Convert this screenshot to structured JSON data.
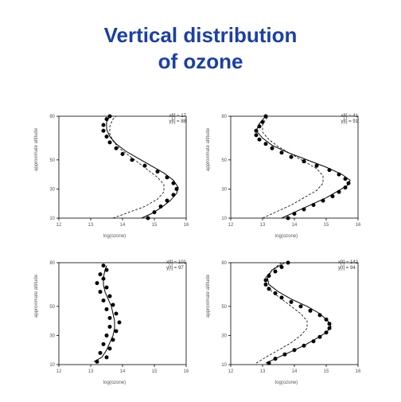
{
  "title_line1": "Vertical distribution",
  "title_line2": "of ozone",
  "title_color": "#1a3fa8",
  "title_fontsize": 26,
  "background_color": "#ffffff",
  "panels": [
    {
      "type": "scatter-line",
      "xlabel": "log(ozone)",
      "ylabel": "approximate altitude",
      "annot_line1": "x[t] = 17",
      "annot_line2": "y[t] = 88",
      "xlim": [
        12,
        16
      ],
      "ylim": [
        10,
        80
      ],
      "xticks": [
        12,
        13,
        14,
        15,
        16
      ],
      "yticks": [
        10,
        30,
        50,
        80
      ],
      "point_color": "#000000",
      "line_color": "#000000",
      "marker_size": 2.5,
      "line_width": 1,
      "points": [
        [
          14.8,
          10
        ],
        [
          15.0,
          14
        ],
        [
          15.2,
          18
        ],
        [
          15.4,
          22
        ],
        [
          15.6,
          26
        ],
        [
          15.7,
          30
        ],
        [
          15.6,
          34
        ],
        [
          15.4,
          38
        ],
        [
          15.1,
          42
        ],
        [
          14.7,
          46
        ],
        [
          14.3,
          50
        ],
        [
          14.0,
          54
        ],
        [
          13.8,
          58
        ],
        [
          13.6,
          62
        ],
        [
          13.5,
          66
        ],
        [
          13.4,
          70
        ],
        [
          13.4,
          74
        ],
        [
          13.5,
          78
        ],
        [
          13.6,
          80
        ]
      ],
      "solid_curve": [
        [
          14.6,
          10
        ],
        [
          14.9,
          13
        ],
        [
          15.2,
          17
        ],
        [
          15.5,
          22
        ],
        [
          15.7,
          27
        ],
        [
          15.75,
          31
        ],
        [
          15.6,
          36
        ],
        [
          15.3,
          41
        ],
        [
          14.9,
          46
        ],
        [
          14.5,
          51
        ],
        [
          14.1,
          56
        ],
        [
          13.8,
          61
        ],
        [
          13.6,
          66
        ],
        [
          13.5,
          71
        ],
        [
          13.5,
          76
        ],
        [
          13.6,
          80
        ]
      ],
      "dashed_curve": [
        [
          13.7,
          10
        ],
        [
          14.2,
          14
        ],
        [
          14.7,
          18
        ],
        [
          15.1,
          23
        ],
        [
          15.3,
          28
        ],
        [
          15.3,
          33
        ],
        [
          15.1,
          38
        ],
        [
          14.8,
          43
        ],
        [
          14.5,
          48
        ],
        [
          14.2,
          53
        ],
        [
          13.9,
          58
        ],
        [
          13.7,
          63
        ],
        [
          13.6,
          68
        ],
        [
          13.6,
          73
        ],
        [
          13.7,
          78
        ],
        [
          13.8,
          80
        ]
      ]
    },
    {
      "type": "scatter-line",
      "xlabel": "log(ozone)",
      "ylabel": "approximate altitude",
      "annot_line1": "x[t] = 41",
      "annot_line2": "y[t] = 91",
      "xlim": [
        12,
        16
      ],
      "ylim": [
        10,
        80
      ],
      "xticks": [
        12,
        13,
        14,
        15,
        16
      ],
      "yticks": [
        10,
        30,
        50,
        80
      ],
      "point_color": "#000000",
      "line_color": "#000000",
      "marker_size": 2.5,
      "line_width": 1,
      "points": [
        [
          13.8,
          10
        ],
        [
          14.0,
          13
        ],
        [
          14.3,
          16
        ],
        [
          14.6,
          19
        ],
        [
          14.9,
          22
        ],
        [
          15.2,
          25
        ],
        [
          15.4,
          28
        ],
        [
          15.6,
          31
        ],
        [
          15.7,
          34
        ],
        [
          15.6,
          37
        ],
        [
          15.4,
          40
        ],
        [
          15.1,
          43
        ],
        [
          14.7,
          46
        ],
        [
          14.3,
          49
        ],
        [
          13.9,
          52
        ],
        [
          13.6,
          55
        ],
        [
          13.3,
          58
        ],
        [
          13.1,
          61
        ],
        [
          12.9,
          64
        ],
        [
          12.8,
          67
        ],
        [
          12.8,
          70
        ],
        [
          12.9,
          73
        ],
        [
          13.0,
          76
        ],
        [
          13.1,
          80
        ]
      ],
      "solid_curve": [
        [
          13.6,
          10
        ],
        [
          14.0,
          14
        ],
        [
          14.5,
          19
        ],
        [
          15.0,
          24
        ],
        [
          15.4,
          29
        ],
        [
          15.7,
          33
        ],
        [
          15.75,
          36
        ],
        [
          15.5,
          40
        ],
        [
          15.0,
          45
        ],
        [
          14.4,
          50
        ],
        [
          13.8,
          55
        ],
        [
          13.3,
          60
        ],
        [
          13.0,
          65
        ],
        [
          12.8,
          70
        ],
        [
          12.9,
          75
        ],
        [
          13.1,
          80
        ]
      ],
      "dashed_curve": [
        [
          13.0,
          10
        ],
        [
          13.4,
          14
        ],
        [
          13.9,
          19
        ],
        [
          14.3,
          24
        ],
        [
          14.7,
          29
        ],
        [
          14.9,
          34
        ],
        [
          14.9,
          39
        ],
        [
          14.7,
          44
        ],
        [
          14.3,
          49
        ],
        [
          13.9,
          54
        ],
        [
          13.5,
          59
        ],
        [
          13.2,
          64
        ],
        [
          13.0,
          69
        ],
        [
          13.0,
          74
        ],
        [
          13.1,
          78
        ],
        [
          13.2,
          80
        ]
      ]
    },
    {
      "type": "scatter-line",
      "xlabel": "log(ozone)",
      "ylabel": "approximate altitude",
      "annot_line1": "x[t] = 101",
      "annot_line2": "y[t] = 97",
      "xlim": [
        12,
        16
      ],
      "ylim": [
        10,
        80
      ],
      "xticks": [
        12,
        13,
        14,
        15,
        16
      ],
      "yticks": [
        10,
        30,
        50,
        80
      ],
      "point_color": "#000000",
      "line_color": "#000000",
      "marker_size": 2.5,
      "line_width": 1,
      "points": [
        [
          13.2,
          12
        ],
        [
          13.5,
          15
        ],
        [
          13.3,
          18
        ],
        [
          13.6,
          21
        ],
        [
          13.4,
          24
        ],
        [
          13.7,
          27
        ],
        [
          13.5,
          30
        ],
        [
          13.8,
          33
        ],
        [
          13.6,
          36
        ],
        [
          13.9,
          39
        ],
        [
          13.6,
          42
        ],
        [
          13.8,
          45
        ],
        [
          13.5,
          48
        ],
        [
          13.7,
          51
        ],
        [
          13.4,
          54
        ],
        [
          13.6,
          57
        ],
        [
          13.3,
          60
        ],
        [
          13.5,
          63
        ],
        [
          13.2,
          66
        ],
        [
          13.4,
          69
        ],
        [
          13.3,
          72
        ],
        [
          13.5,
          75
        ],
        [
          13.4,
          78
        ]
      ],
      "solid_curve": [
        [
          13.1,
          12
        ],
        [
          13.35,
          15
        ],
        [
          13.5,
          20
        ],
        [
          13.6,
          25
        ],
        [
          13.7,
          30
        ],
        [
          13.75,
          35
        ],
        [
          13.75,
          40
        ],
        [
          13.7,
          45
        ],
        [
          13.65,
          50
        ],
        [
          13.55,
          55
        ],
        [
          13.45,
          60
        ],
        [
          13.4,
          65
        ],
        [
          13.4,
          70
        ],
        [
          13.45,
          75
        ],
        [
          13.5,
          78
        ]
      ],
      "dashed_curve": []
    },
    {
      "type": "scatter-line",
      "xlabel": "log(ozone)",
      "ylabel": "approximate altitude",
      "annot_line1": "x[t] = 142",
      "annot_line2": "y[t] = 94",
      "xlim": [
        12,
        16
      ],
      "ylim": [
        10,
        80
      ],
      "xticks": [
        12,
        13,
        14,
        15,
        16
      ],
      "yticks": [
        10,
        30,
        50,
        80
      ],
      "point_color": "#000000",
      "line_color": "#000000",
      "marker_size": 2.5,
      "line_width": 1,
      "points": [
        [
          13.2,
          11
        ],
        [
          13.4,
          14
        ],
        [
          13.7,
          17
        ],
        [
          14.0,
          20
        ],
        [
          14.3,
          23
        ],
        [
          14.6,
          26
        ],
        [
          14.8,
          29
        ],
        [
          15.0,
          32
        ],
        [
          15.1,
          35
        ],
        [
          15.1,
          38
        ],
        [
          15.0,
          41
        ],
        [
          14.8,
          44
        ],
        [
          14.5,
          47
        ],
        [
          14.2,
          50
        ],
        [
          13.9,
          53
        ],
        [
          13.6,
          56
        ],
        [
          13.4,
          59
        ],
        [
          13.2,
          62
        ],
        [
          13.1,
          65
        ],
        [
          13.1,
          68
        ],
        [
          13.2,
          71
        ],
        [
          13.4,
          74
        ],
        [
          13.6,
          77
        ],
        [
          13.8,
          80
        ]
      ],
      "solid_curve": [
        [
          13.1,
          11
        ],
        [
          13.5,
          15
        ],
        [
          13.9,
          19
        ],
        [
          14.3,
          23
        ],
        [
          14.7,
          28
        ],
        [
          15.0,
          32
        ],
        [
          15.15,
          36
        ],
        [
          15.05,
          40
        ],
        [
          14.8,
          45
        ],
        [
          14.4,
          50
        ],
        [
          13.9,
          55
        ],
        [
          13.5,
          60
        ],
        [
          13.2,
          65
        ],
        [
          13.15,
          70
        ],
        [
          13.3,
          75
        ],
        [
          13.7,
          80
        ]
      ],
      "dashed_curve": [
        [
          12.8,
          11
        ],
        [
          13.1,
          15
        ],
        [
          13.5,
          20
        ],
        [
          13.9,
          25
        ],
        [
          14.2,
          30
        ],
        [
          14.4,
          35
        ],
        [
          14.4,
          40
        ],
        [
          14.2,
          45
        ],
        [
          13.9,
          50
        ],
        [
          13.6,
          55
        ],
        [
          13.3,
          60
        ],
        [
          13.1,
          65
        ],
        [
          13.1,
          70
        ],
        [
          13.3,
          75
        ],
        [
          13.6,
          80
        ]
      ]
    }
  ]
}
